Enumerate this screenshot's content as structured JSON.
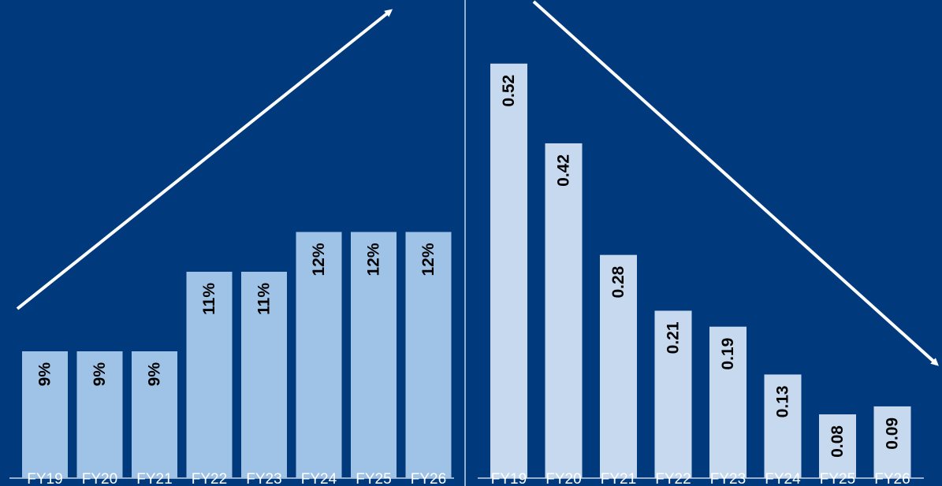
{
  "colors": {
    "background": "#003a7d",
    "left_bar": "#9fc3e6",
    "right_bar": "#c6d9ef",
    "axis": "#c9d6ea",
    "arrow": "#ffffff",
    "divider": "#c9d6ea"
  },
  "chart_data": [
    {
      "type": "bar",
      "categories": [
        "FY19",
        "FY20",
        "FY21",
        "FY22",
        "FY23",
        "FY24",
        "FY25",
        "FY26"
      ],
      "values": [
        9,
        9,
        9,
        11,
        11,
        12,
        12,
        12
      ],
      "data_labels": [
        "9%",
        "9%",
        "9%",
        "11%",
        "11%",
        "12%",
        "12%",
        "12%"
      ],
      "trend_arrow": "up"
    },
    {
      "type": "bar",
      "categories": [
        "FY19",
        "FY20",
        "FY21",
        "FY22",
        "FY23",
        "FY24",
        "FY25",
        "FY26"
      ],
      "values": [
        0.52,
        0.42,
        0.28,
        0.21,
        0.19,
        0.13,
        0.08,
        0.09
      ],
      "data_labels": [
        "0.52",
        "0.42",
        "0.28",
        "0.21",
        "0.19",
        "0.13",
        "0.08",
        "0.09"
      ],
      "trend_arrow": "down"
    }
  ]
}
